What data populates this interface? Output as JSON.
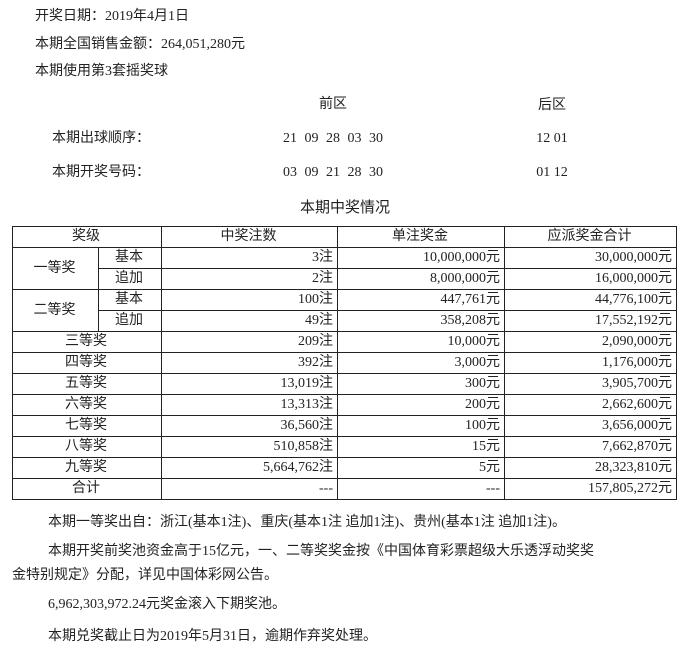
{
  "header": {
    "draw_date": "开奖日期：2019年4月1日",
    "sales": "本期全国销售金额：264,051,280元",
    "ball_set": "本期使用第3套摇奖球"
  },
  "numbers": {
    "front_label": "前区",
    "back_label": "后区",
    "order_label": "本期出球顺序：",
    "order_front": "21 09 28 03 30",
    "order_back": "12 01",
    "result_label": "本期开奖号码：",
    "result_front": "03 09 21 28 30",
    "result_back": "01 12"
  },
  "table": {
    "title": "本期中奖情况",
    "headers": [
      "奖级",
      "中奖注数",
      "单注奖金",
      "应派奖金合计"
    ],
    "first": {
      "level": "一等奖",
      "rows": [
        {
          "sub": "基本",
          "count": "3注",
          "prize": "10,000,000元",
          "total": "30,000,000元"
        },
        {
          "sub": "追加",
          "count": "2注",
          "prize": "8,000,000元",
          "total": "16,000,000元"
        }
      ]
    },
    "second": {
      "level": "二等奖",
      "rows": [
        {
          "sub": "基本",
          "count": "100注",
          "prize": "447,761元",
          "total": "44,776,100元"
        },
        {
          "sub": "追加",
          "count": "49注",
          "prize": "358,208元",
          "total": "17,552,192元"
        }
      ]
    },
    "rows": [
      {
        "level": "三等奖",
        "count": "209注",
        "prize": "10,000元",
        "total": "2,090,000元"
      },
      {
        "level": "四等奖",
        "count": "392注",
        "prize": "3,000元",
        "total": "1,176,000元"
      },
      {
        "level": "五等奖",
        "count": "13,019注",
        "prize": "300元",
        "total": "3,905,700元"
      },
      {
        "level": "六等奖",
        "count": "13,313注",
        "prize": "200元",
        "total": "2,662,600元"
      },
      {
        "level": "七等奖",
        "count": "36,560注",
        "prize": "100元",
        "total": "3,656,000元"
      },
      {
        "level": "八等奖",
        "count": "510,858注",
        "prize": "15元",
        "total": "7,662,870元"
      },
      {
        "level": "九等奖",
        "count": "5,664,762注",
        "prize": "5元",
        "total": "28,323,810元"
      },
      {
        "level": "合计",
        "count": "---",
        "prize": "---",
        "total": "157,805,272元"
      }
    ]
  },
  "notes": {
    "origin": "本期一等奖出自：浙江(基本1注)、重庆(基本1注  追加1注)、贵州(基本1注  追加1注)。",
    "pool_1": "本期开奖前奖池资金高于15亿元，一、二等奖奖金按《中国体育彩票超级大乐透浮动奖奖",
    "pool_2": "金特别规定》分配，详见中国体彩网公告。",
    "rollover": "6,962,303,972.24元奖金滚入下期奖池。",
    "deadline": "本期兑奖截止日为2019年5月31日，逾期作弃奖处理。"
  }
}
